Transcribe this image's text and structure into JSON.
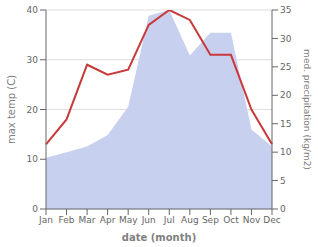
{
  "chart_data": {
    "type": "line",
    "xlabel": "date (month)",
    "ylabel": "max temp (C)",
    "y2label": "med. precipitation (kg/m2)",
    "categories": [
      "Jan",
      "Feb",
      "Mar",
      "Apr",
      "May",
      "Jun",
      "Jul",
      "Aug",
      "Sep",
      "Oct",
      "Nov",
      "Dec"
    ],
    "series": [
      {
        "type": "area",
        "axis": "y2",
        "color": "#c8d0f0",
        "values": [
          9,
          10,
          11,
          13,
          18,
          34,
          35,
          27,
          31,
          31,
          14,
          11
        ]
      },
      {
        "type": "line",
        "color": "#c83a3a",
        "values": [
          13,
          18,
          29,
          27,
          28,
          37,
          40,
          38,
          31,
          31,
          20,
          13
        ]
      }
    ],
    "ylim": [
      0,
      40
    ],
    "yticks": [
      0,
      10,
      20,
      30,
      40
    ],
    "y2lim": [
      0,
      35
    ],
    "y2ticks": [
      0,
      5,
      10,
      15,
      20,
      25,
      30,
      35
    ],
    "grid": true
  }
}
